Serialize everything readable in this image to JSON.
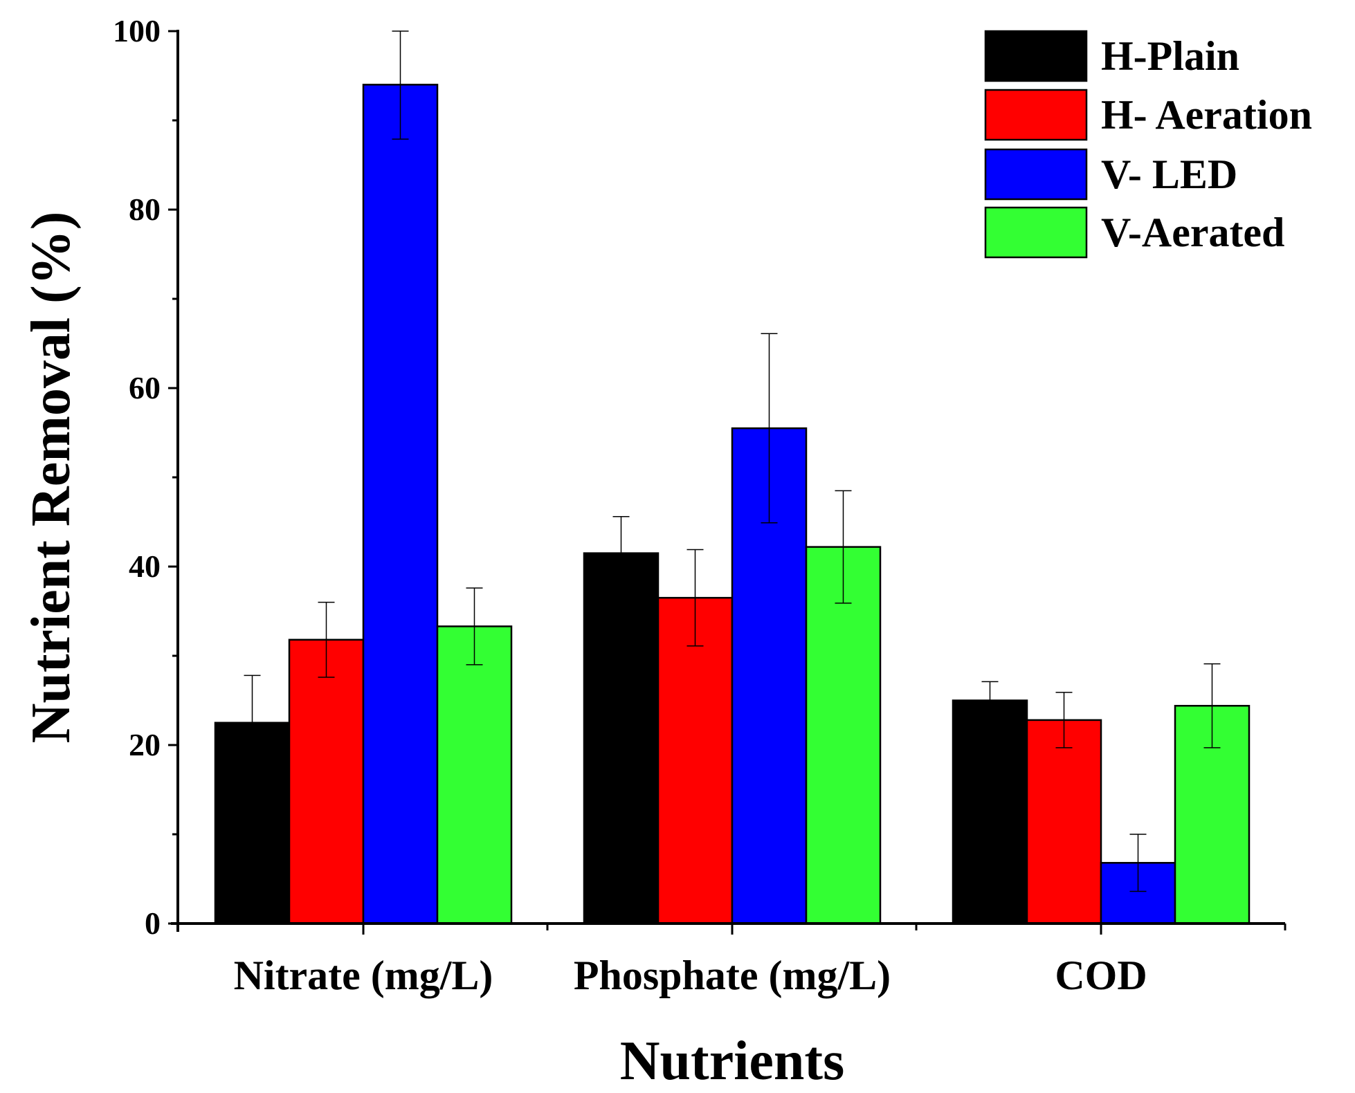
{
  "chart_data": {
    "type": "bar",
    "title": "",
    "xlabel": "Nutrients",
    "ylabel": "Nutrient Removal (%)",
    "ylim": [
      0,
      100
    ],
    "yticks": [
      0,
      20,
      40,
      60,
      80,
      100
    ],
    "yticks_minor": [
      10,
      30,
      50,
      70,
      90
    ],
    "grid": false,
    "legend_position": "top-right",
    "categories": [
      "Nitrate (mg/L)",
      "Phosphate (mg/L)",
      "COD"
    ],
    "series": [
      {
        "name": "H-Plain",
        "color": "#000000",
        "values": [
          22.5,
          41.5,
          25.0
        ],
        "errors": [
          5.3,
          4.1,
          2.1
        ]
      },
      {
        "name": "H- Aeration",
        "color": "#ff0000",
        "values": [
          31.8,
          36.5,
          22.8
        ],
        "errors": [
          4.2,
          5.4,
          3.1
        ]
      },
      {
        "name": "V- LED",
        "color": "#0000ff",
        "values": [
          94.0,
          55.5,
          6.8
        ],
        "errors": [
          6.1,
          10.6,
          3.2
        ]
      },
      {
        "name": "V-Aerated",
        "color": "#33ff33",
        "values": [
          33.3,
          42.2,
          24.4
        ],
        "errors": [
          4.3,
          6.3,
          4.7
        ]
      }
    ]
  }
}
